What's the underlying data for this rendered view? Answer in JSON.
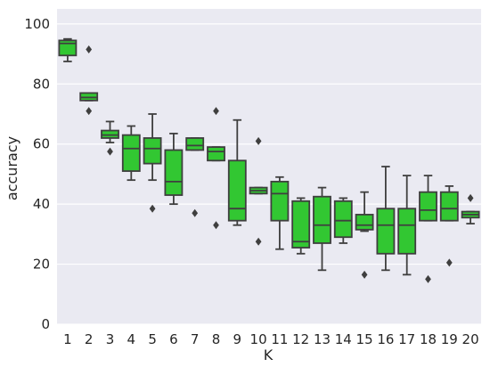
{
  "chart_data": {
    "type": "box",
    "title": "",
    "xlabel": "K",
    "ylabel": "accuracy",
    "ylim": [
      0,
      105
    ],
    "yticks": [
      0,
      20,
      40,
      60,
      80,
      100
    ],
    "grid": true,
    "colors": {
      "background": "#eaeaf2",
      "grid": "#ffffff",
      "box": "#32c732",
      "line": "#3f3f3f"
    },
    "categories": [
      "1",
      "2",
      "3",
      "4",
      "5",
      "6",
      "7",
      "8",
      "9",
      "10",
      "11",
      "12",
      "13",
      "14",
      "15",
      "16",
      "17",
      "18",
      "19",
      "20"
    ],
    "boxes": [
      {
        "x": "1",
        "whislo": 87.5,
        "q1": 89.5,
        "med": 93.5,
        "q3": 94.5,
        "whishi": 95,
        "fliers": []
      },
      {
        "x": "2",
        "whislo": 74.5,
        "q1": 74.5,
        "med": 75.5,
        "q3": 77,
        "whishi": 77,
        "fliers": [
          91.5,
          71
        ]
      },
      {
        "x": "3",
        "whislo": 60.5,
        "q1": 62,
        "med": 63,
        "q3": 64.5,
        "whishi": 67.5,
        "fliers": [
          57.5
        ]
      },
      {
        "x": "4",
        "whislo": 48,
        "q1": 51,
        "med": 58.5,
        "q3": 63,
        "whishi": 66,
        "fliers": []
      },
      {
        "x": "5",
        "whislo": 48,
        "q1": 53.5,
        "med": 58.5,
        "q3": 62,
        "whishi": 70,
        "fliers": [
          38.5
        ]
      },
      {
        "x": "6",
        "whislo": 40,
        "q1": 43,
        "med": 47.5,
        "q3": 58,
        "whishi": 63.5,
        "fliers": []
      },
      {
        "x": "7",
        "whislo": 58,
        "q1": 58,
        "med": 59.5,
        "q3": 62,
        "whishi": 62,
        "fliers": [
          37
        ]
      },
      {
        "x": "8",
        "whislo": 54.5,
        "q1": 54.5,
        "med": 57.5,
        "q3": 59,
        "whishi": 59,
        "fliers": [
          71,
          33
        ]
      },
      {
        "x": "9",
        "whislo": 33,
        "q1": 34.5,
        "med": 38.5,
        "q3": 54.5,
        "whishi": 68,
        "fliers": []
      },
      {
        "x": "10",
        "whislo": 43.5,
        "q1": 43.5,
        "med": 44.5,
        "q3": 45.5,
        "whishi": 45.5,
        "fliers": [
          61,
          27.5
        ]
      },
      {
        "x": "11",
        "whislo": 25,
        "q1": 34.5,
        "med": 43.5,
        "q3": 47.5,
        "whishi": 49,
        "fliers": []
      },
      {
        "x": "12",
        "whislo": 23.5,
        "q1": 25.5,
        "med": 27.5,
        "q3": 41,
        "whishi": 42,
        "fliers": []
      },
      {
        "x": "13",
        "whislo": 18,
        "q1": 27,
        "med": 33,
        "q3": 42.5,
        "whishi": 45.5,
        "fliers": []
      },
      {
        "x": "14",
        "whislo": 27,
        "q1": 29,
        "med": 34.5,
        "q3": 41,
        "whishi": 42,
        "fliers": []
      },
      {
        "x": "15",
        "whislo": 31,
        "q1": 31.5,
        "med": 33,
        "q3": 36.5,
        "whishi": 44,
        "fliers": [
          16.5
        ]
      },
      {
        "x": "16",
        "whislo": 18,
        "q1": 23.5,
        "med": 33,
        "q3": 38.5,
        "whishi": 52.5,
        "fliers": []
      },
      {
        "x": "17",
        "whislo": 16.5,
        "q1": 23.5,
        "med": 33,
        "q3": 38.5,
        "whishi": 49.5,
        "fliers": []
      },
      {
        "x": "18",
        "whislo": 34.5,
        "q1": 34.5,
        "med": 38,
        "q3": 44,
        "whishi": 49.5,
        "fliers": [
          15
        ]
      },
      {
        "x": "19",
        "whislo": 34.5,
        "q1": 34.5,
        "med": 38.5,
        "q3": 44,
        "whishi": 46,
        "fliers": [
          20.5
        ]
      },
      {
        "x": "20",
        "whislo": 33.5,
        "q1": 35.5,
        "med": 36.5,
        "q3": 37.5,
        "whishi": 37.5,
        "fliers": [
          42
        ]
      }
    ]
  }
}
